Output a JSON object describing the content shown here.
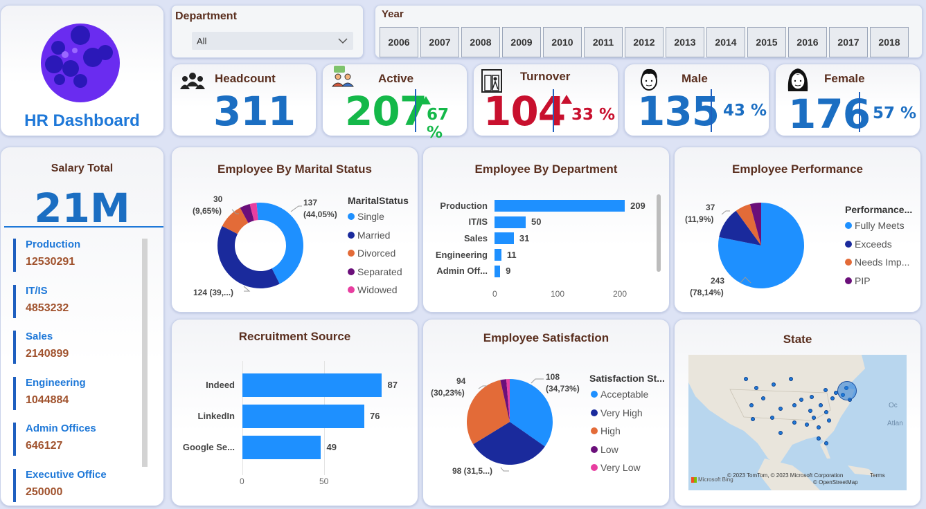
{
  "app": {
    "title": "HR Dashboard"
  },
  "filters": {
    "department_label": "Department",
    "department_value": "All",
    "year_label": "Year",
    "years": [
      "2006",
      "2007",
      "2008",
      "2009",
      "2010",
      "2011",
      "2012",
      "2013",
      "2014",
      "2015",
      "2016",
      "2017",
      "2018"
    ]
  },
  "kpis": {
    "headcount": {
      "label": "Headcount",
      "value": "311"
    },
    "active": {
      "label": "Active",
      "value": "207",
      "pct": "67 %"
    },
    "turnover": {
      "label": "Turnover",
      "value": "104",
      "pct": "33 %"
    },
    "male": {
      "label": "Male",
      "value": "135",
      "pct": "43 %"
    },
    "female": {
      "label": "Female",
      "value": "176",
      "pct": "57 %"
    }
  },
  "salary": {
    "title": "Salary Total",
    "total": "21M",
    "items": [
      {
        "name": "Production",
        "value": "12530291"
      },
      {
        "name": "IT/IS",
        "value": "4853232"
      },
      {
        "name": "Sales",
        "value": "2140899"
      },
      {
        "name": "Engineering",
        "value": "1044884"
      },
      {
        "name": "Admin Offices",
        "value": "646127"
      },
      {
        "name": "Executive Office",
        "value": "250000"
      }
    ]
  },
  "colors": {
    "blue": "#1e90ff",
    "navy": "#1a2a9c",
    "orange": "#e36b38",
    "purple": "#6b0f7a",
    "pink": "#e83ea0",
    "green": "#14b849",
    "red": "#c8102e",
    "kpi_blue": "#1b6ec2"
  },
  "icons": {
    "headcount": "people-group-icon",
    "active": "users-chat-icon",
    "turnover": "door-exit-icon",
    "male": "male-avatar-icon",
    "female": "female-avatar-icon",
    "up": "triangle-up-icon"
  },
  "marital": {
    "title": "Employee By Marital Status",
    "legend_title": "MaritalStatus",
    "labels": {
      "single": "137",
      "single_pct": "(44,05%)",
      "married": "124 (39,...)",
      "divorced": "30",
      "divorced_pct": "(9,65%)"
    }
  },
  "department_chart": {
    "title": "Employee By Department",
    "ticks": [
      "0",
      "100",
      "200"
    ]
  },
  "performance": {
    "title": "Employee Performance",
    "legend_title": "Performance...",
    "labels": {
      "fully": "243",
      "fully_pct": "(78,14%)",
      "needs": "37",
      "needs_pct": "(11,9%)"
    }
  },
  "recruitment": {
    "title": "Recruitment Source",
    "ticks": [
      "0",
      "50"
    ]
  },
  "satisfaction": {
    "title": "Employee Satisfaction",
    "legend_title": "Satisfaction St...",
    "labels": {
      "acceptable": "108",
      "acceptable_pct": "(34,73%)",
      "high": "94",
      "high_pct": "(30,23%)",
      "very_high": "98 (31,5...)"
    }
  },
  "state": {
    "title": "State",
    "copyright": "© 2023 TomTom, © 2023 Microsoft Corporation",
    "terms": "Terms",
    "osm": "© OpenStreetMap",
    "bing": "Microsoft Bing",
    "ocean1": "Oc",
    "ocean2": "Atlan"
  },
  "chart_data": [
    {
      "type": "pie",
      "title": "Employee By Marital Status",
      "categories": [
        "Single",
        "Married",
        "Divorced",
        "Separated",
        "Widowed"
      ],
      "values": [
        137,
        124,
        30,
        12,
        8
      ],
      "colors": [
        "#1e90ff",
        "#1a2a9c",
        "#e36b38",
        "#6b0f7a",
        "#e83ea0"
      ],
      "donut": true
    },
    {
      "type": "bar",
      "title": "Employee By Department",
      "categories": [
        "Production",
        "IT/IS",
        "Sales",
        "Engineering",
        "Admin Off..."
      ],
      "values": [
        209,
        50,
        31,
        11,
        9
      ],
      "xlim": [
        0,
        220
      ]
    },
    {
      "type": "pie",
      "title": "Employee Performance",
      "categories": [
        "Fully Meets",
        "Exceeds",
        "Needs Imp...",
        "PIP"
      ],
      "values": [
        243,
        37,
        18,
        13
      ],
      "colors": [
        "#1e90ff",
        "#1a2a9c",
        "#e36b38",
        "#6b0f7a"
      ]
    },
    {
      "type": "bar",
      "title": "Recruitment Source",
      "categories": [
        "Indeed",
        "LinkedIn",
        "Google Se..."
      ],
      "values": [
        87,
        76,
        49
      ],
      "xlim": [
        0,
        95
      ]
    },
    {
      "type": "pie",
      "title": "Employee Satisfaction",
      "categories": [
        "Acceptable",
        "Very High",
        "High",
        "Low",
        "Very Low"
      ],
      "values": [
        108,
        98,
        94,
        7,
        4
      ],
      "colors": [
        "#1e90ff",
        "#1a2a9c",
        "#e36b38",
        "#6b0f7a",
        "#e83ea0"
      ]
    }
  ]
}
